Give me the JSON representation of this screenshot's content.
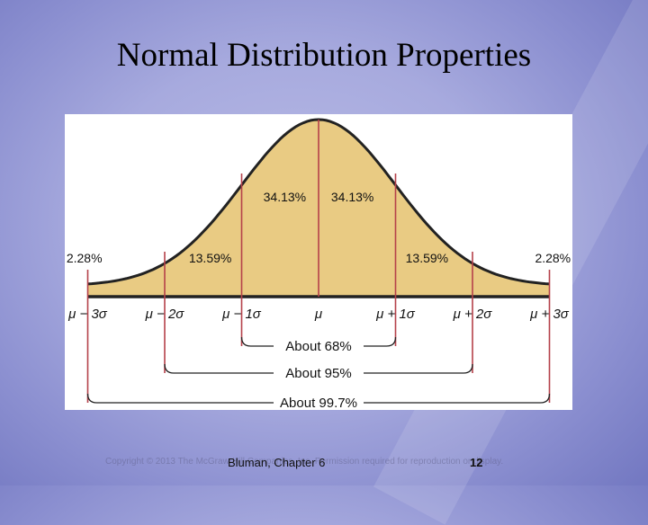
{
  "slide": {
    "title": "Normal Distribution Properties",
    "author": "Bluman, Chapter 6",
    "page_number": "12",
    "copyright": "Copyright © 2013 The McGraw-Hill Companies, Inc. Permission required for reproduction or display."
  },
  "diagram": {
    "fill_color": "#e9cb83",
    "line_color": "#b5414a",
    "axis_labels": [
      "μ − 3σ",
      "μ − 2σ",
      "μ − 1σ",
      "μ",
      "μ + 1σ",
      "μ + 2σ",
      "μ + 3σ"
    ],
    "region_labels": [
      "2.28%",
      "13.59%",
      "34.13%",
      "34.13%",
      "13.59%",
      "2.28%"
    ],
    "brackets": [
      "About 68%",
      "About 95%",
      "About 99.7%"
    ]
  }
}
